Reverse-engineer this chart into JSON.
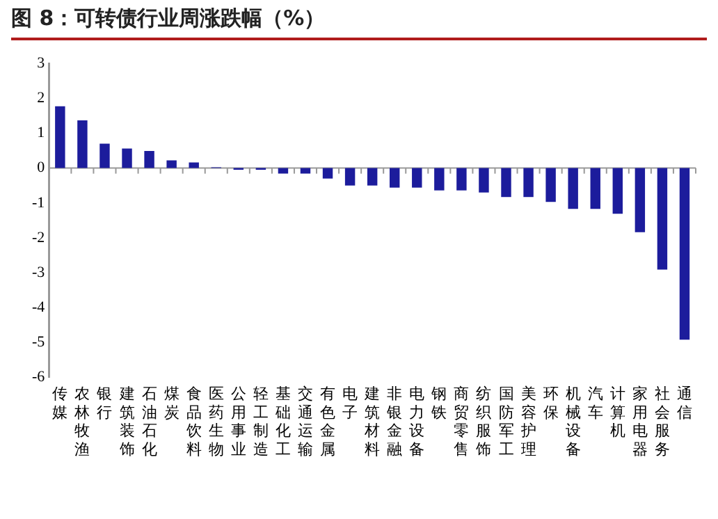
{
  "chart_data": {
    "type": "bar",
    "title": "图 8：可转债行业周涨跌幅（%）",
    "categories": [
      "传媒",
      "农林牧渔",
      "银行",
      "建筑装饰",
      "石油石化",
      "煤炭",
      "食品饮料",
      "医药生物",
      "公用事业",
      "轻工制造",
      "基础化工",
      "交通运输",
      "有色金属",
      "电子",
      "建筑材料",
      "非银金融",
      "电力设备",
      "钢铁",
      "商贸零售",
      "纺织服饰",
      "国防军工",
      "美容护理",
      "环保",
      "机械设备",
      "汽车",
      "计算机",
      "家用电器",
      "社会服务",
      "通信"
    ],
    "values": [
      1.77,
      1.37,
      0.7,
      0.56,
      0.49,
      0.22,
      0.16,
      0.02,
      -0.05,
      -0.05,
      -0.16,
      -0.16,
      -0.3,
      -0.5,
      -0.5,
      -0.56,
      -0.56,
      -0.64,
      -0.64,
      -0.7,
      -0.83,
      -0.83,
      -0.97,
      -1.17,
      -1.17,
      -1.31,
      -1.84,
      -2.91,
      -4.92
    ],
    "color": "#1c1c9c",
    "ylim": [
      -6,
      3
    ],
    "yticks": [
      -6,
      -5,
      -4,
      -3,
      -2,
      -1,
      0,
      1,
      2,
      3
    ]
  }
}
